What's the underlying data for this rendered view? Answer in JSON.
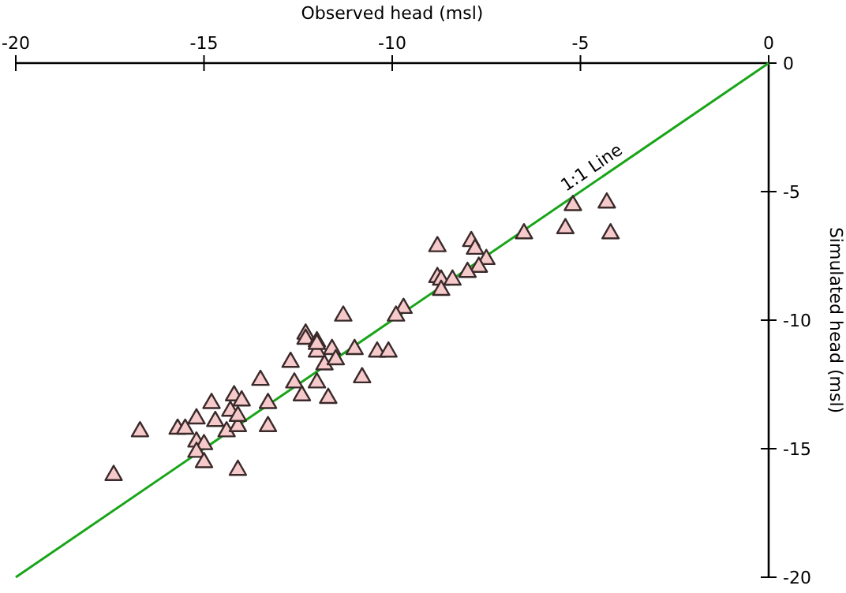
{
  "chart_data": {
    "type": "scatter",
    "xlabel": "Observed head (msl)",
    "ylabel": "Simulated head (msl)",
    "xlim": [
      -20,
      0
    ],
    "ylim": [
      -20,
      0
    ],
    "xticks": [
      -20,
      -15,
      -10,
      -5,
      0
    ],
    "yticks": [
      -20,
      -15,
      -10,
      -5,
      0
    ],
    "marker": "triangle",
    "grid": false,
    "annotations": [
      {
        "text": "1:1 Line",
        "x": -4.5,
        "y": -4.5
      }
    ],
    "series": [
      {
        "color": "#f6c9cb",
        "x": [
          -17.4,
          -16.7,
          -15.7,
          -15.5,
          -15.2,
          -14.8,
          -14.7,
          -15.2,
          -15.0,
          -15.2,
          -15.0,
          -14.4,
          -14.3,
          -14.1,
          -14.2,
          -14.0,
          -14.1,
          -14.1,
          -13.5,
          -13.3,
          -13.3,
          -12.7,
          -12.6,
          -12.4,
          -12.3,
          -12.3,
          -12.0,
          -12.0,
          -11.8,
          -12.0,
          -11.7,
          -8.8,
          -7.9,
          -7.8,
          -6.5,
          -5.4,
          -7.5,
          -7.7,
          -8.0,
          -8.8,
          -8.7,
          -8.4,
          -8.7,
          -9.7,
          -9.9,
          -11.3,
          -12.0,
          -11.6,
          -11.0,
          -10.4,
          -10.1,
          -11.5,
          -10.8,
          -5.2,
          -4.3,
          -4.2
        ],
        "values": [
          -16.0,
          -14.3,
          -14.2,
          -14.2,
          -13.8,
          -13.2,
          -13.9,
          -14.7,
          -14.8,
          -15.1,
          -15.5,
          -14.3,
          -13.5,
          -14.1,
          -12.9,
          -13.1,
          -13.7,
          -15.8,
          -12.3,
          -13.2,
          -14.1,
          -11.6,
          -12.4,
          -12.9,
          -10.5,
          -10.7,
          -10.8,
          -11.2,
          -11.7,
          -12.4,
          -13.0,
          -7.1,
          -6.9,
          -7.2,
          -6.6,
          -6.4,
          -7.6,
          -7.9,
          -8.1,
          -8.3,
          -8.4,
          -8.4,
          -8.8,
          -9.5,
          -9.8,
          -9.8,
          -10.9,
          -11.1,
          -11.1,
          -11.2,
          -11.2,
          -11.5,
          -12.2,
          -5.5,
          -5.4,
          -6.6
        ]
      },
      {
        "type": "line",
        "marker": "none",
        "color": "#19a519",
        "x": [
          -20,
          0
        ],
        "values": [
          -20,
          0
        ]
      }
    ]
  }
}
